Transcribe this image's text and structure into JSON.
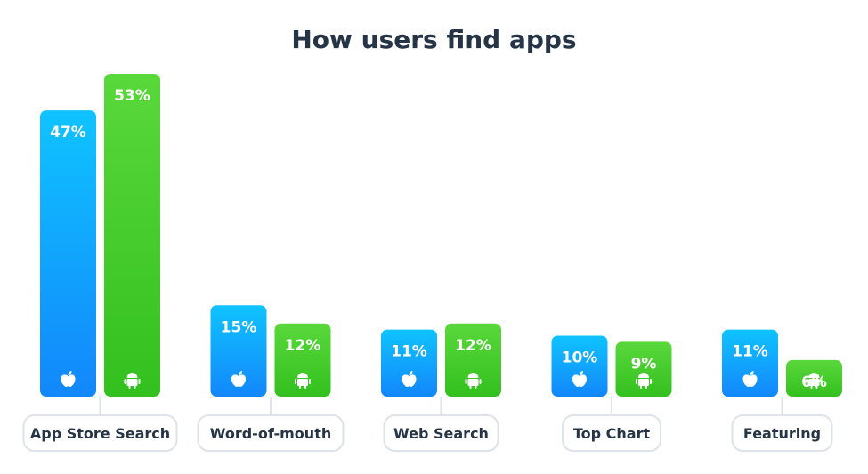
{
  "chart_data": {
    "type": "bar",
    "title": "How users find apps",
    "categories": [
      "App Store Search",
      "Word-of-mouth",
      "Web Search",
      "Top Chart",
      "Featuring"
    ],
    "series": [
      {
        "icon": "apple-icon",
        "color_top": "#10c3ff",
        "color_bottom": "#1287fb",
        "values": [
          47,
          15,
          11,
          10,
          11
        ],
        "labels": [
          "47%",
          "15%",
          "11%",
          "10%",
          "11%"
        ]
      },
      {
        "icon": "android-icon",
        "color_top": "#5ad83b",
        "color_bottom": "#33c01f",
        "values": [
          53,
          12,
          12,
          9,
          6
        ],
        "labels": [
          "53%",
          "12%",
          "12%",
          "9%",
          "6%"
        ]
      }
    ],
    "ylim": [
      0,
      53
    ],
    "grid": false,
    "legend": "none",
    "label_color": "#263447",
    "pill_border_color": "#dde3e9"
  }
}
